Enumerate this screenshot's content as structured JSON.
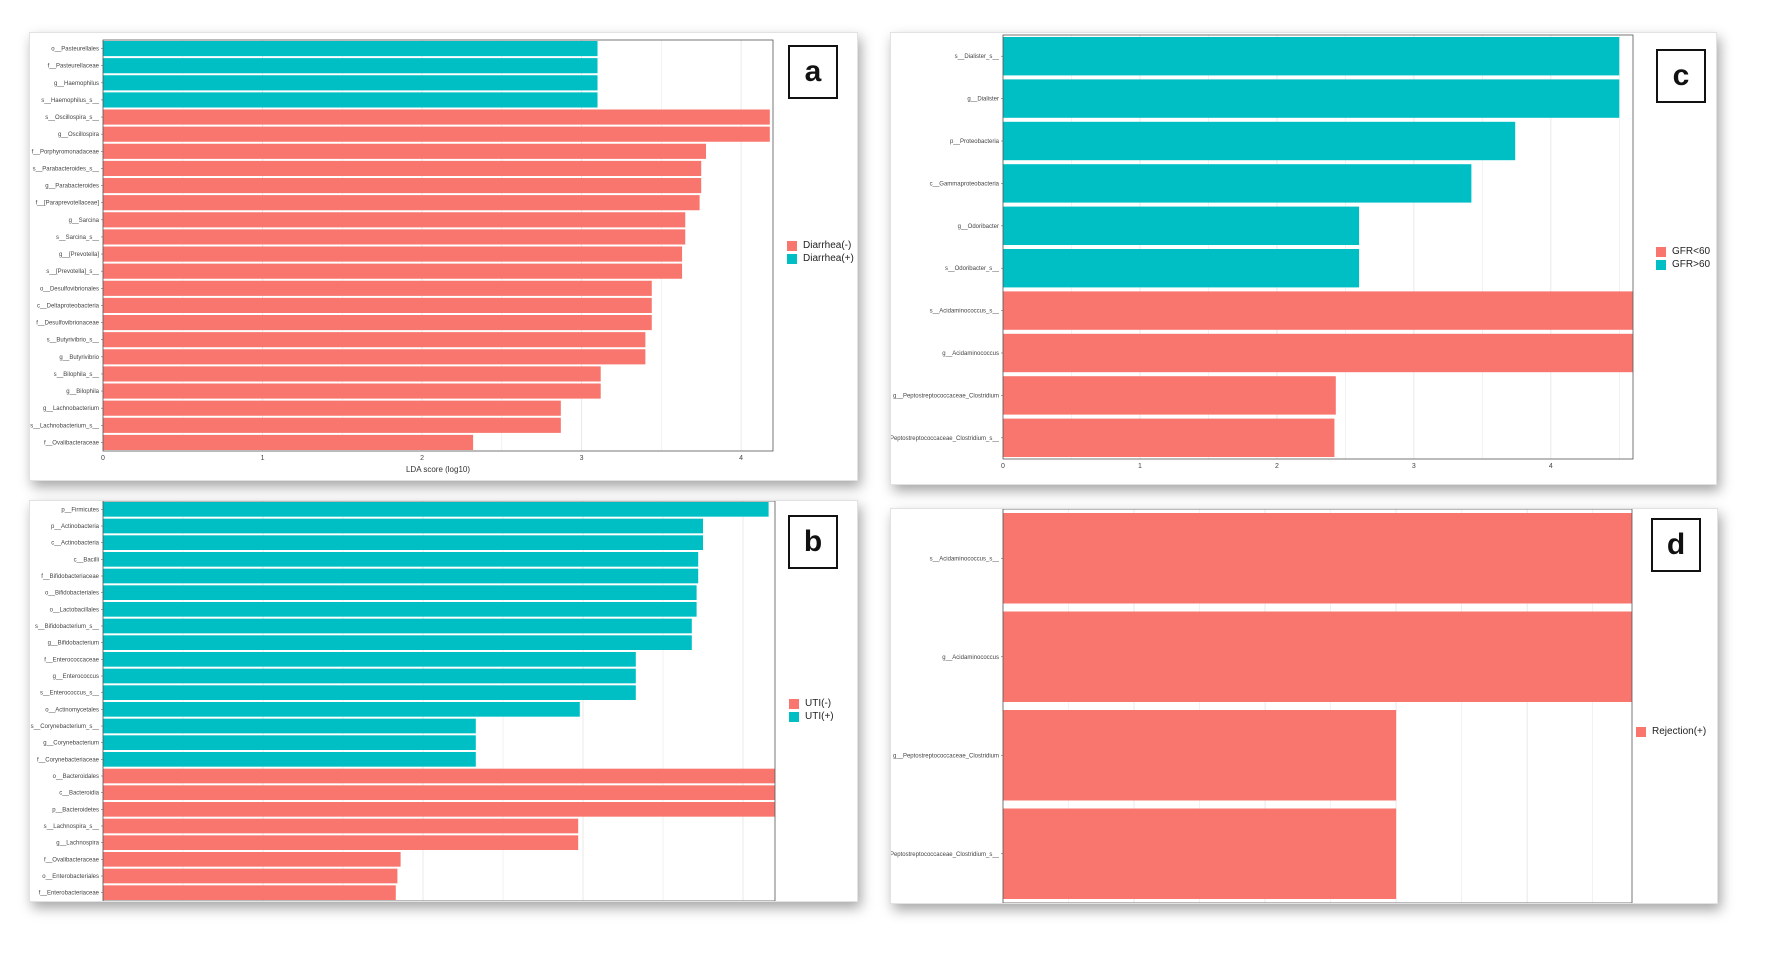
{
  "colors": {
    "red": "#f8766d",
    "teal": "#00bfc4",
    "grid": "#e9e9e9",
    "frame": "#555555"
  },
  "panels": [
    {
      "id": "a",
      "tag": "a",
      "legend": [
        "Diarrhea(-)",
        "Diarrhea(+)"
      ]
    },
    {
      "id": "b",
      "tag": "b",
      "legend": [
        "UTI(-)",
        "UTI(+)"
      ]
    },
    {
      "id": "c",
      "tag": "c",
      "legend": [
        "GFR<60",
        "GFR>60"
      ]
    },
    {
      "id": "d",
      "tag": "d",
      "legend": [
        "Rejection(+)"
      ]
    }
  ],
  "chart_data": [
    {
      "panel": "a",
      "type": "bar",
      "orientation": "horizontal",
      "xlabel": "LDA score (log10)",
      "xlim": [
        0,
        4.2
      ],
      "xticks": [
        0,
        1,
        2,
        3,
        4
      ],
      "categories": [
        "o__Pasteurellales",
        "f__Pasteurellaceae",
        "g__Haemophilus",
        "s__Haemophilus_s__",
        "s__Oscillospira_s__",
        "g__Oscillospira",
        "f__Porphyromonadaceae",
        "s__Parabacteroides_s__",
        "g__Parabacteroides",
        "f__[Paraprevotellaceae]",
        "g__Sarcina",
        "s__Sarcina_s__",
        "g__[Prevotella]",
        "s__[Prevotella]_s__",
        "o__Desulfovibrionales",
        "c__Deltaproteobacteria",
        "f__Desulfovibrionaceae",
        "s__Butyrivibrio_s__",
        "g__Butyrivibrio",
        "s__Bilophila_s__",
        "g__Bilophila",
        "g__Lachnobacterium",
        "s__Lachnobacterium_s__",
        "f__Ovalibacteraceae"
      ],
      "values": [
        3.1,
        3.1,
        3.1,
        3.1,
        4.18,
        4.18,
        3.78,
        3.75,
        3.75,
        3.74,
        3.65,
        3.65,
        3.63,
        3.63,
        3.44,
        3.44,
        3.44,
        3.4,
        3.4,
        3.12,
        3.12,
        2.87,
        2.87,
        2.32
      ],
      "groups": [
        "Diarrhea(+)",
        "Diarrhea(+)",
        "Diarrhea(+)",
        "Diarrhea(+)",
        "Diarrhea(-)",
        "Diarrhea(-)",
        "Diarrhea(-)",
        "Diarrhea(-)",
        "Diarrhea(-)",
        "Diarrhea(-)",
        "Diarrhea(-)",
        "Diarrhea(-)",
        "Diarrhea(-)",
        "Diarrhea(-)",
        "Diarrhea(-)",
        "Diarrhea(-)",
        "Diarrhea(-)",
        "Diarrhea(-)",
        "Diarrhea(-)",
        "Diarrhea(-)",
        "Diarrhea(-)",
        "Diarrhea(-)",
        "Diarrhea(-)",
        "Diarrhea(-)"
      ]
    },
    {
      "panel": "b",
      "type": "bar",
      "orientation": "horizontal",
      "xlabel": "",
      "xlim": [
        0,
        4.2
      ],
      "xticks": [],
      "categories": [
        "p__Firmicutes",
        "p__Actinobacteria",
        "c__Actinobacteria",
        "c__Bacilli",
        "f__Bifidobacteriaceae",
        "o__Bifidobacteriales",
        "o__Lactobacillales",
        "s__Bifidobacterium_s__",
        "g__Bifidobacterium",
        "f__Enterococcaceae",
        "g__Enterococcus",
        "s__Enterococcus_s__",
        "o__Actinomycetales",
        "s__Corynebacterium_s__",
        "g__Corynebacterium",
        "f__Corynebacteriaceae",
        "o__Bacteroidales",
        "c__Bacteroidia",
        "p__Bacteroidetes",
        "s__Lachnospira_s__",
        "g__Lachnospira",
        "f__Ovalibacteraceae",
        "o__Enterobacteriales",
        "f__Enterobacteriaceae"
      ],
      "values": [
        4.16,
        3.75,
        3.75,
        3.72,
        3.72,
        3.71,
        3.71,
        3.68,
        3.68,
        3.33,
        3.33,
        3.33,
        2.98,
        2.33,
        2.33,
        2.33,
        4.2,
        4.2,
        4.2,
        2.97,
        2.97,
        1.86,
        1.84,
        1.83
      ],
      "groups": [
        "UTI(+)",
        "UTI(+)",
        "UTI(+)",
        "UTI(+)",
        "UTI(+)",
        "UTI(+)",
        "UTI(+)",
        "UTI(+)",
        "UTI(+)",
        "UTI(+)",
        "UTI(+)",
        "UTI(+)",
        "UTI(+)",
        "UTI(+)",
        "UTI(+)",
        "UTI(+)",
        "UTI(-)",
        "UTI(-)",
        "UTI(-)",
        "UTI(-)",
        "UTI(-)",
        "UTI(-)",
        "UTI(-)",
        "UTI(-)"
      ]
    },
    {
      "panel": "c",
      "type": "bar",
      "orientation": "horizontal",
      "xlabel": "",
      "xlim": [
        0,
        4.6
      ],
      "xticks": [
        0,
        1,
        2,
        3,
        4
      ],
      "categories": [
        "s__Dialister_s__",
        "g__Dialister",
        "p__Proteobacteria",
        "c__Gammaproteobacteria",
        "g__Odoribacter",
        "s__Odoribacter_s__",
        "s__Acidaminococcus_s__",
        "g__Acidaminococcus",
        "g__Peptostreptococcaceae_Clostridium",
        "s__Peptostreptococcaceae_Clostridium_s__"
      ],
      "values": [
        4.5,
        4.5,
        3.74,
        3.42,
        2.6,
        2.6,
        4.6,
        4.6,
        2.43,
        2.42
      ],
      "groups": [
        "GFR>60",
        "GFR>60",
        "GFR>60",
        "GFR>60",
        "GFR>60",
        "GFR>60",
        "GFR<60",
        "GFR<60",
        "GFR<60",
        "GFR<60"
      ]
    },
    {
      "panel": "d",
      "type": "bar",
      "orientation": "horizontal",
      "xlabel": "",
      "xlim": [
        0,
        4.8
      ],
      "xticks": [],
      "categories": [
        "s__Acidaminococcus_s__",
        "g__Acidaminococcus",
        "g__Peptostreptococcaceae_Clostridium",
        "s__Peptostreptococcaceae_Clostridium_s__"
      ],
      "values": [
        4.8,
        4.8,
        3.0,
        3.0
      ],
      "groups": [
        "Rejection(+)",
        "Rejection(+)",
        "Rejection(+)",
        "Rejection(+)"
      ]
    }
  ]
}
